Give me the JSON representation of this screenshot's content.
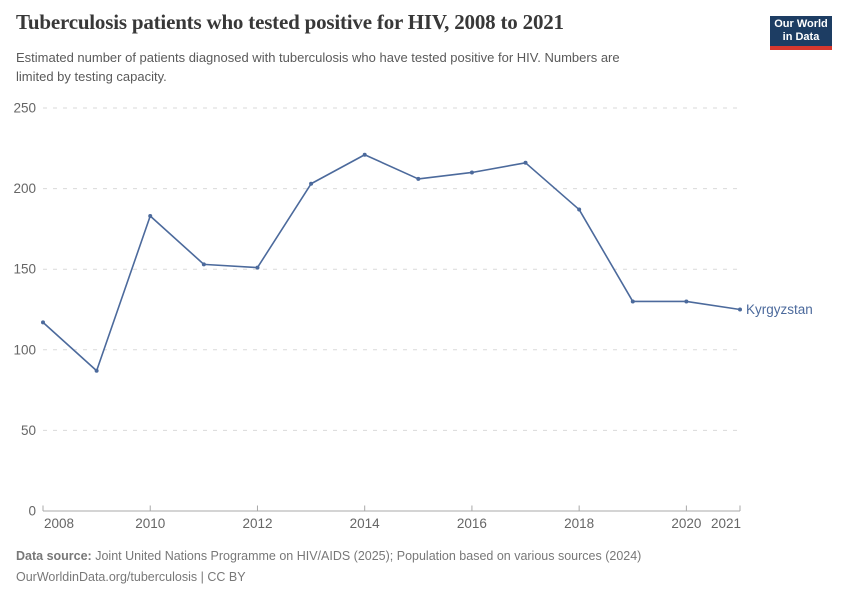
{
  "header": {
    "title": "Tuberculosis patients who tested positive for HIV, 2008 to 2021",
    "subtitle_line1": "Estimated number of patients diagnosed with tuberculosis who have tested positive for HIV. Numbers are",
    "subtitle_line2": "limited by testing capacity.",
    "logo_line1": "Our World",
    "logo_line2": "in Data"
  },
  "chart_data": {
    "type": "line",
    "title": "Tuberculosis patients who tested positive for HIV, 2008 to 2021",
    "x": [
      2008,
      2009,
      2010,
      2011,
      2012,
      2013,
      2014,
      2015,
      2016,
      2017,
      2018,
      2019,
      2020,
      2021
    ],
    "series": [
      {
        "name": "Kyrgyzstan",
        "color": "#4c6a9c",
        "values": [
          117,
          87,
          183,
          153,
          151,
          203,
          221,
          206,
          210,
          216,
          187,
          130,
          130,
          125
        ]
      }
    ],
    "entity_label": "Kyrgyzstan",
    "xlim": [
      2008,
      2021
    ],
    "ylim": [
      0,
      250
    ],
    "y_ticks": [
      0,
      50,
      100,
      150,
      200,
      250
    ],
    "x_ticks": [
      2008,
      2010,
      2012,
      2014,
      2016,
      2018,
      2020,
      2021
    ],
    "grid": "horizontal-dashed",
    "legend_position": "line-end-label"
  },
  "footer": {
    "datasource_label": "Data source:",
    "datasource_text": "Joint United Nations Programme on HIV/AIDS (2025); Population based on various sources (2024)",
    "url": "OurWorldinData.org/tuberculosis",
    "separator": "|",
    "license": "CC BY"
  },
  "colors": {
    "series": "#4c6a9c",
    "grid": "#dadada",
    "axis": "#a8a8a8",
    "tick_label": "#666666",
    "title": "#383838",
    "subtitle": "#5a5a5a",
    "footer": "#787878",
    "logo_bg": "#1d3d63",
    "logo_accent": "#d7382e"
  }
}
